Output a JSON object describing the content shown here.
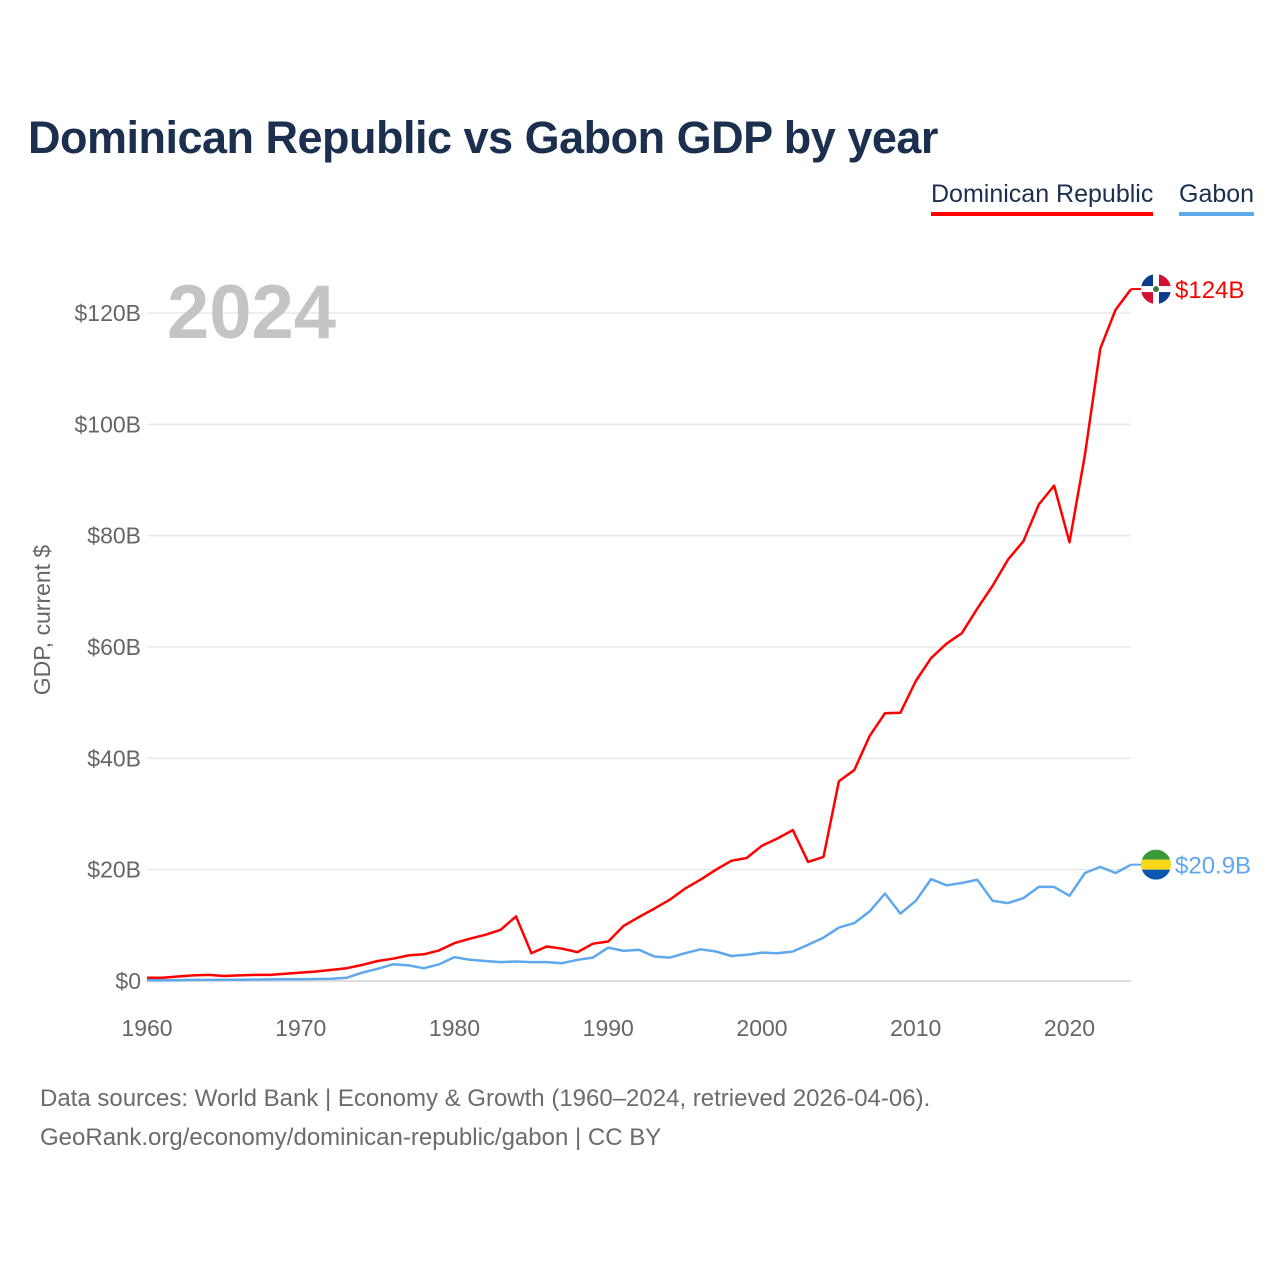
{
  "title": "Dominican Republic vs Gabon GDP by year",
  "legend": [
    "Dominican Republic",
    "Gabon"
  ],
  "year_label": "2024",
  "footer": {
    "line1": "Data sources: World Bank | Economy & Growth (1960–2024, retrieved 2026-04-06).",
    "line2": "GeoRank.org/economy/dominican-republic/gabon | CC BY"
  },
  "chart_data": {
    "type": "line",
    "title": "Dominican Republic vs Gabon GDP by year",
    "xlabel": "",
    "ylabel": "GDP, current $",
    "xlim": [
      1960,
      2024
    ],
    "ylim": [
      0,
      130
    ],
    "grid": true,
    "legend_position": "top-right",
    "x_ticks": [
      1960,
      1970,
      1980,
      1990,
      2000,
      2010,
      2020
    ],
    "y_ticks": [
      0,
      20,
      40,
      60,
      80,
      100,
      120
    ],
    "y_tick_labels": [
      "$0",
      "$20B",
      "$40B",
      "$60B",
      "$80B",
      "$100B",
      "$120B"
    ],
    "x_start": 1960,
    "series": [
      {
        "name": "Dominican Republic",
        "color": "#ff0000",
        "end_label": "$124B",
        "flag": "dominican-republic",
        "values": [
          0.6,
          0.6,
          0.8,
          1.0,
          1.1,
          0.9,
          1.0,
          1.1,
          1.1,
          1.3,
          1.5,
          1.7,
          2.0,
          2.3,
          2.9,
          3.6,
          4.0,
          4.6,
          4.8,
          5.5,
          6.8,
          7.6,
          8.3,
          9.2,
          11.6,
          5.0,
          6.2,
          5.8,
          5.2,
          6.7,
          7.1,
          9.9,
          11.5,
          13.0,
          14.6,
          16.6,
          18.2,
          20.0,
          21.6,
          22.1,
          24.3,
          25.6,
          27.1,
          21.4,
          22.3,
          35.9,
          37.9,
          44.0,
          48.1,
          48.2,
          53.9,
          58.0,
          60.6,
          62.5,
          66.9,
          71.0,
          75.7,
          79.0,
          85.6,
          89.0,
          78.8,
          94.5,
          113.6,
          120.6,
          124.3
        ]
      },
      {
        "name": "Gabon",
        "color": "#5fa8ec",
        "end_label": "$20.9B",
        "flag": "gabon",
        "values": [
          0.14,
          0.15,
          0.17,
          0.19,
          0.2,
          0.23,
          0.24,
          0.26,
          0.28,
          0.3,
          0.32,
          0.36,
          0.4,
          0.6,
          1.5,
          2.2,
          3.0,
          2.8,
          2.3,
          3.0,
          4.3,
          3.8,
          3.6,
          3.4,
          3.5,
          3.4,
          3.4,
          3.2,
          3.8,
          4.2,
          6.0,
          5.4,
          5.6,
          4.4,
          4.2,
          5.0,
          5.7,
          5.3,
          4.5,
          4.7,
          5.1,
          5.0,
          5.3,
          6.5,
          7.8,
          9.6,
          10.4,
          12.5,
          15.7,
          12.1,
          14.4,
          18.3,
          17.2,
          17.6,
          18.2,
          14.4,
          14.0,
          14.9,
          16.9,
          16.9,
          15.3,
          19.4,
          20.5,
          19.4,
          20.9
        ]
      }
    ]
  }
}
